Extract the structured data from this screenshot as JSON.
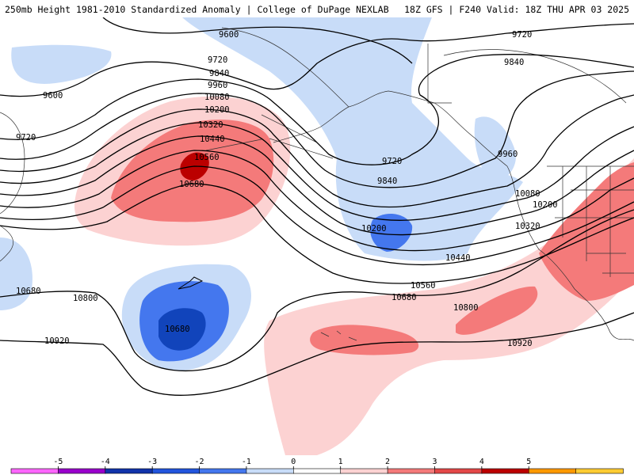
{
  "header": {
    "left": "250mb Height 1981-2010 Standardized Anomaly | College of DuPage NEXLAB",
    "right": "18Z GFS | F240 Valid: 18Z THU APR 03 2025"
  },
  "contour_labels": [
    "9600",
    "9600",
    "9720",
    "9720",
    "9720",
    "9720",
    "9840",
    "9840",
    "9840",
    "9960",
    "9960",
    "10080",
    "10080",
    "10200",
    "10200",
    "10200",
    "10320",
    "10320",
    "10440",
    "10440",
    "10560",
    "10560",
    "10680",
    "10680",
    "10680",
    "10680",
    "10800",
    "10800",
    "10920",
    "10920"
  ],
  "legend": {
    "ticks": [
      "-5",
      "-4",
      "-3",
      "-2",
      "-1",
      "0",
      "1",
      "2",
      "3",
      "4",
      "5"
    ],
    "colors": [
      "#ff66ff",
      "#9900cc",
      "#1133aa",
      "#2255dd",
      "#4477ee",
      "#c8dcf8",
      "#ffffff",
      "#fcd2d2",
      "#f47a7a",
      "#e34848",
      "#bb0000",
      "#ff9900",
      "#ffcc33"
    ]
  }
}
